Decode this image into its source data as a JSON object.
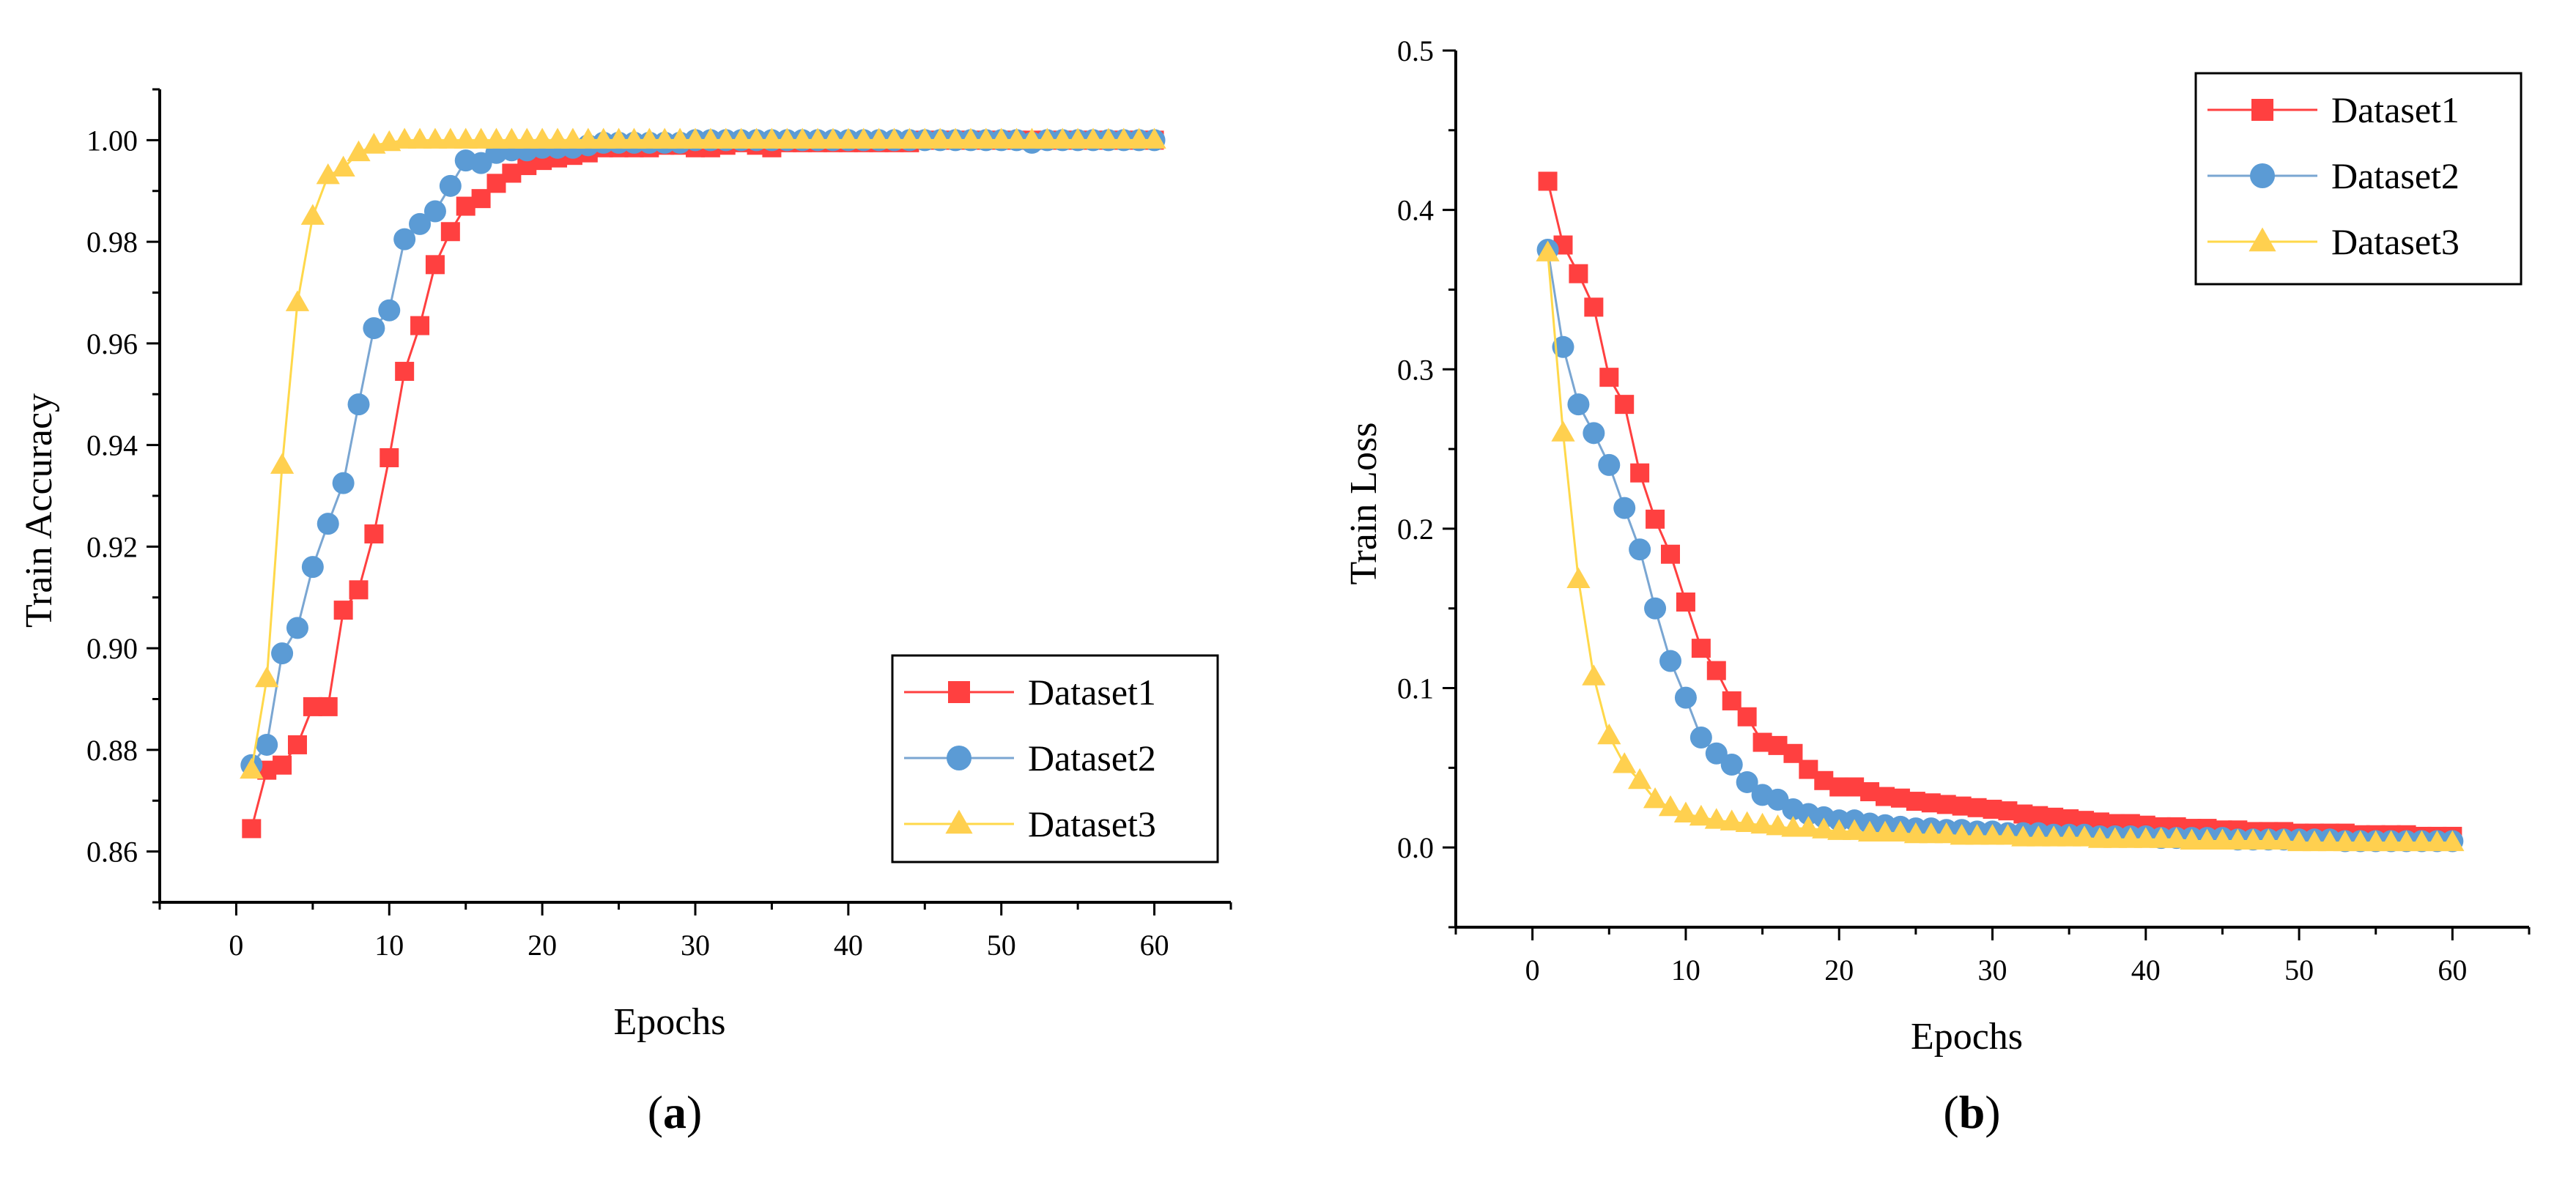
{
  "colors": {
    "Dataset1": "#ff4040",
    "Dataset2": "#5b9bd5",
    "Dataset3": "#ffd04f",
    "Dataset1_line": "#ff4040",
    "Dataset2_line": "#7aa6d2",
    "Dataset3_line": "#ffd84a"
  },
  "chart_data": [
    {
      "type": "line",
      "panel_label": "a",
      "title": "",
      "xlabel": "Epochs",
      "ylabel": "Train Accuracy",
      "xlim": [
        -5,
        65
      ],
      "ylim": [
        0.85,
        1.01
      ],
      "xticks": [
        0,
        10,
        20,
        30,
        40,
        50,
        60
      ],
      "xtick_labels": [
        "0",
        "10",
        "20",
        "30",
        "40",
        "50",
        "60"
      ],
      "yticks": [
        0.86,
        0.88,
        0.9,
        0.92,
        0.94,
        0.96,
        0.98,
        1.0
      ],
      "ytick_labels": [
        "0.86",
        "0.88",
        "0.90",
        "0.92",
        "0.94",
        "0.96",
        "0.98",
        "1.00"
      ],
      "grid": false,
      "legend_position": "bottom-right",
      "x": [
        1,
        2,
        3,
        4,
        5,
        6,
        7,
        8,
        9,
        10,
        11,
        12,
        13,
        14,
        15,
        16,
        17,
        18,
        19,
        20,
        21,
        22,
        23,
        24,
        25,
        26,
        27,
        28,
        29,
        30,
        31,
        32,
        33,
        34,
        35,
        36,
        37,
        38,
        39,
        40,
        41,
        42,
        43,
        44,
        45,
        46,
        47,
        48,
        49,
        50,
        51,
        52,
        53,
        54,
        55,
        56,
        57,
        58,
        59,
        60
      ],
      "series": [
        {
          "name": "Dataset1",
          "marker": "square",
          "values": [
            0.8645,
            0.876,
            0.877,
            0.881,
            0.8885,
            0.8885,
            0.9075,
            0.9115,
            0.9225,
            0.9375,
            0.9545,
            0.9635,
            0.9755,
            0.982,
            0.987,
            0.9885,
            0.9915,
            0.9935,
            0.995,
            0.996,
            0.9965,
            0.997,
            0.9975,
            0.9985,
            0.9985,
            0.9985,
            0.9985,
            0.999,
            0.999,
            0.9985,
            0.9985,
            0.999,
            0.9995,
            0.999,
            0.9985,
            0.9995,
            0.9995,
            0.9995,
            0.9995,
            0.9995,
            0.9995,
            0.9995,
            0.9995,
            0.9995,
            1.0,
            1.0,
            1.0,
            1.0,
            1.0,
            1.0,
            1.0,
            1.0,
            1.0,
            1.0,
            1.0,
            1.0,
            1.0,
            1.0,
            1.0,
            1.0
          ]
        },
        {
          "name": "Dataset2",
          "marker": "circle",
          "values": [
            0.877,
            0.881,
            0.899,
            0.904,
            0.916,
            0.9245,
            0.9325,
            0.948,
            0.963,
            0.9665,
            0.9805,
            0.9835,
            0.986,
            0.991,
            0.996,
            0.9955,
            0.9975,
            0.998,
            0.998,
            0.9985,
            0.9985,
            0.9985,
            0.999,
            0.9995,
            0.9995,
            0.9995,
            0.9995,
            0.9995,
            0.9995,
            1.0,
            1.0,
            1.0,
            1.0,
            1.0,
            1.0,
            1.0,
            1.0,
            1.0,
            1.0,
            1.0,
            1.0,
            1.0,
            1.0,
            1.0,
            1.0,
            1.0,
            1.0,
            1.0,
            1.0,
            1.0,
            1.0,
            0.9995,
            1.0,
            1.0,
            1.0,
            1.0,
            1.0,
            1.0,
            1.0,
            1.0
          ]
        },
        {
          "name": "Dataset3",
          "marker": "triangle",
          "values": [
            0.876,
            0.894,
            0.936,
            0.968,
            0.985,
            0.993,
            0.9945,
            0.9975,
            0.999,
            0.9995,
            1.0,
            1.0,
            1.0,
            1.0,
            1.0,
            1.0,
            1.0,
            1.0,
            1.0,
            1.0,
            1.0,
            1.0,
            1.0,
            1.0,
            1.0,
            1.0,
            1.0,
            1.0,
            1.0,
            1.0,
            1.0,
            1.0,
            1.0,
            1.0,
            1.0,
            1.0,
            1.0,
            1.0,
            1.0,
            1.0,
            1.0,
            1.0,
            1.0,
            1.0,
            1.0,
            1.0,
            1.0,
            1.0,
            1.0,
            1.0,
            1.0,
            1.0,
            1.0,
            1.0,
            1.0,
            1.0,
            1.0,
            1.0,
            1.0,
            1.0
          ]
        }
      ]
    },
    {
      "type": "line",
      "panel_label": "b",
      "title": "",
      "xlabel": "Epochs",
      "ylabel": "Train Loss",
      "xlim": [
        -5,
        65
      ],
      "ylim": [
        -0.05,
        0.5
      ],
      "xticks": [
        0,
        10,
        20,
        30,
        40,
        50,
        60
      ],
      "xtick_labels": [
        "0",
        "10",
        "20",
        "30",
        "40",
        "50",
        "60"
      ],
      "yticks": [
        0.0,
        0.1,
        0.2,
        0.3,
        0.4,
        0.5
      ],
      "ytick_labels": [
        "0.0",
        "0.1",
        "0.2",
        "0.3",
        "0.4",
        "0.5"
      ],
      "grid": false,
      "legend_position": "top-right",
      "x": [
        1,
        2,
        3,
        4,
        5,
        6,
        7,
        8,
        9,
        10,
        11,
        12,
        13,
        14,
        15,
        16,
        17,
        18,
        19,
        20,
        21,
        22,
        23,
        24,
        25,
        26,
        27,
        28,
        29,
        30,
        31,
        32,
        33,
        34,
        35,
        36,
        37,
        38,
        39,
        40,
        41,
        42,
        43,
        44,
        45,
        46,
        47,
        48,
        49,
        50,
        51,
        52,
        53,
        54,
        55,
        56,
        57,
        58,
        59,
        60
      ],
      "series": [
        {
          "name": "Dataset1",
          "marker": "square",
          "values": [
            0.418,
            0.378,
            0.36,
            0.339,
            0.295,
            0.278,
            0.235,
            0.206,
            0.184,
            0.154,
            0.125,
            0.111,
            0.092,
            0.082,
            0.066,
            0.064,
            0.059,
            0.049,
            0.042,
            0.038,
            0.038,
            0.035,
            0.032,
            0.031,
            0.029,
            0.028,
            0.027,
            0.026,
            0.025,
            0.024,
            0.023,
            0.021,
            0.02,
            0.019,
            0.018,
            0.017,
            0.016,
            0.015,
            0.015,
            0.014,
            0.013,
            0.013,
            0.012,
            0.012,
            0.011,
            0.011,
            0.01,
            0.01,
            0.01,
            0.009,
            0.009,
            0.009,
            0.009,
            0.008,
            0.008,
            0.008,
            0.008,
            0.007,
            0.007,
            0.007
          ]
        },
        {
          "name": "Dataset2",
          "marker": "circle",
          "values": [
            0.375,
            0.314,
            0.278,
            0.26,
            0.24,
            0.213,
            0.187,
            0.15,
            0.117,
            0.094,
            0.069,
            0.059,
            0.052,
            0.041,
            0.033,
            0.03,
            0.024,
            0.021,
            0.019,
            0.017,
            0.017,
            0.015,
            0.014,
            0.013,
            0.012,
            0.012,
            0.011,
            0.011,
            0.01,
            0.01,
            0.009,
            0.009,
            0.009,
            0.008,
            0.008,
            0.008,
            0.007,
            0.007,
            0.007,
            0.007,
            0.006,
            0.006,
            0.006,
            0.006,
            0.006,
            0.005,
            0.005,
            0.005,
            0.005,
            0.005,
            0.005,
            0.005,
            0.004,
            0.004,
            0.004,
            0.004,
            0.004,
            0.004,
            0.004,
            0.004
          ]
        },
        {
          "name": "Dataset3",
          "marker": "triangle",
          "values": [
            0.373,
            0.26,
            0.168,
            0.107,
            0.07,
            0.052,
            0.042,
            0.03,
            0.025,
            0.021,
            0.019,
            0.017,
            0.016,
            0.015,
            0.014,
            0.013,
            0.012,
            0.012,
            0.011,
            0.01,
            0.01,
            0.009,
            0.009,
            0.009,
            0.008,
            0.008,
            0.008,
            0.007,
            0.007,
            0.007,
            0.007,
            0.006,
            0.006,
            0.006,
            0.006,
            0.006,
            0.005,
            0.005,
            0.005,
            0.005,
            0.005,
            0.005,
            0.004,
            0.004,
            0.004,
            0.004,
            0.004,
            0.004,
            0.004,
            0.003,
            0.003,
            0.003,
            0.003,
            0.003,
            0.003,
            0.003,
            0.003,
            0.003,
            0.003,
            0.003
          ]
        }
      ]
    }
  ]
}
